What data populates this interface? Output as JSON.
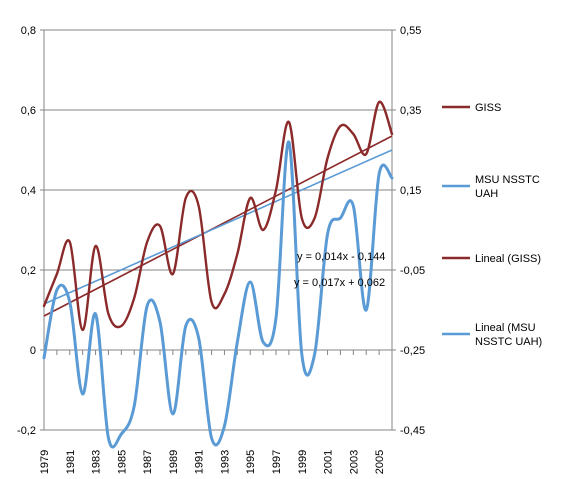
{
  "chart_data": {
    "type": "line",
    "grid": "horizontal",
    "legend_position": "right",
    "x": [
      1979,
      1980,
      1981,
      1982,
      1983,
      1984,
      1985,
      1986,
      1987,
      1988,
      1989,
      1990,
      1991,
      1992,
      1993,
      1994,
      1995,
      1996,
      1997,
      1998,
      1999,
      2000,
      2001,
      2002,
      2003,
      2004,
      2005,
      2006
    ],
    "x_tick_labels": [
      "1979",
      "1981",
      "1983",
      "1985",
      "1987",
      "1989",
      "1991",
      "1993",
      "1995",
      "1997",
      "1999",
      "2001",
      "2003",
      "2005"
    ],
    "y_left": {
      "ylim": [
        -0.2,
        0.8
      ],
      "ticks": [
        "-0,2",
        "0",
        "0,2",
        "0,4",
        "0,6",
        "0,8"
      ]
    },
    "y_right": {
      "ylim": [
        -0.45,
        0.55
      ],
      "ticks": [
        "-0,45",
        "-0,25",
        "-0,05",
        "0,15",
        "0,35",
        "0,55"
      ]
    },
    "series": [
      {
        "name": "GISS",
        "axis": "left",
        "color": "#8B2A2A",
        "kind": "line",
        "values": [
          0.11,
          0.19,
          0.27,
          0.05,
          0.26,
          0.09,
          0.06,
          0.13,
          0.27,
          0.31,
          0.19,
          0.38,
          0.36,
          0.12,
          0.14,
          0.24,
          0.38,
          0.3,
          0.4,
          0.57,
          0.33,
          0.33,
          0.48,
          0.56,
          0.54,
          0.49,
          0.62,
          0.54
        ]
      },
      {
        "name": "MSU NSSTC UAH",
        "axis": "right",
        "color": "#5B9BD5",
        "kind": "line",
        "values": [
          -0.27,
          -0.1,
          -0.13,
          -0.36,
          -0.16,
          -0.47,
          -0.46,
          -0.39,
          -0.14,
          -0.18,
          -0.41,
          -0.19,
          -0.22,
          -0.47,
          -0.44,
          -0.23,
          -0.08,
          -0.23,
          -0.17,
          0.27,
          -0.26,
          -0.26,
          0.04,
          0.08,
          0.11,
          -0.15,
          0.19,
          0.18
        ]
      },
      {
        "name": "Lineal (GISS)",
        "axis": "left",
        "color": "#8B2A2A",
        "kind": "trend",
        "x": [
          1979,
          2006
        ],
        "values": [
          0.085,
          0.535
        ]
      },
      {
        "name": "Lineal (MSU NSSTC UAH)",
        "axis": "left",
        "color": "#5B9BD5",
        "kind": "trend",
        "x": [
          1979,
          2006
        ],
        "values": [
          0.115,
          0.5
        ]
      }
    ],
    "annotations": [
      "y = 0,014x - 0,144",
      "y = 0,017x + 0,062"
    ]
  },
  "legend": {
    "items": [
      {
        "lines": [
          "GISS"
        ],
        "color": "#8B2A2A"
      },
      {
        "lines": [
          "MSU NSSTC",
          "UAH"
        ],
        "color": "#5B9BD5"
      },
      {
        "lines": [
          "Lineal (GISS)"
        ],
        "color": "#8B2A2A"
      },
      {
        "lines": [
          "Lineal (MSU",
          "NSSTC UAH)"
        ],
        "color": "#5B9BD5"
      }
    ]
  }
}
